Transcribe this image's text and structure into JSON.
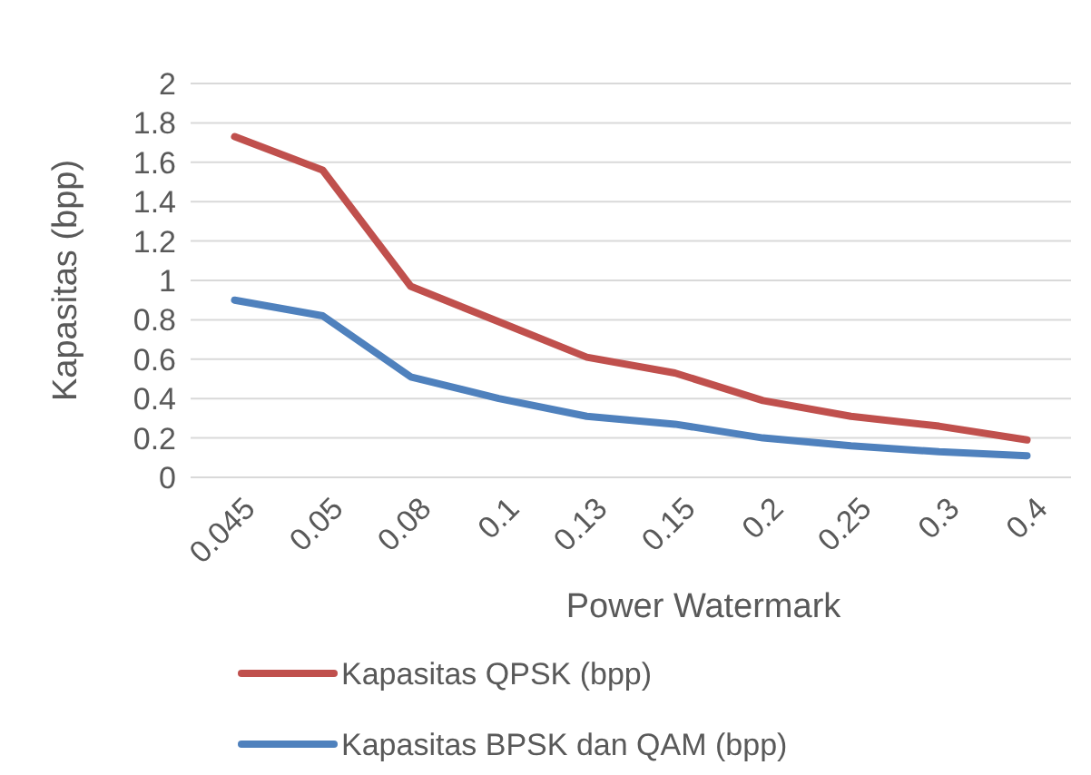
{
  "chart_data": {
    "type": "line",
    "xlabel": "Power Watermark",
    "ylabel": "Kapasitas (bpp)",
    "categories": [
      "0.045",
      "0.05",
      "0.08",
      "0.1",
      "0.13",
      "0.15",
      "0.2",
      "0.25",
      "0.3",
      "0.4"
    ],
    "series": [
      {
        "name": "Kapasitas QPSK (bpp)",
        "color": "#c0504d",
        "values": [
          1.73,
          1.56,
          0.97,
          0.79,
          0.61,
          0.53,
          0.39,
          0.31,
          0.26,
          0.19
        ]
      },
      {
        "name": "Kapasitas BPSK dan QAM (bpp)",
        "color": "#4f81bd",
        "values": [
          0.9,
          0.82,
          0.51,
          0.4,
          0.31,
          0.27,
          0.2,
          0.16,
          0.13,
          0.11
        ]
      }
    ],
    "ylim": [
      0,
      2
    ],
    "yticks": [
      0,
      {
        "value": 0.2,
        "label": "0.2"
      },
      {
        "value": 0.4,
        "label": "0.4"
      },
      {
        "value": 0.6,
        "label": "0.6"
      },
      {
        "value": 0.8,
        "label": "0.8"
      },
      1,
      {
        "value": 1.2,
        "label": "1.2"
      },
      {
        "value": 1.4,
        "label": "1.4"
      },
      {
        "value": 1.6,
        "label": "1.6"
      },
      {
        "value": 1.8,
        "label": "1.8"
      },
      2
    ],
    "grid": "y",
    "legend": "bottom",
    "marker": "none",
    "line_style": "solid"
  }
}
